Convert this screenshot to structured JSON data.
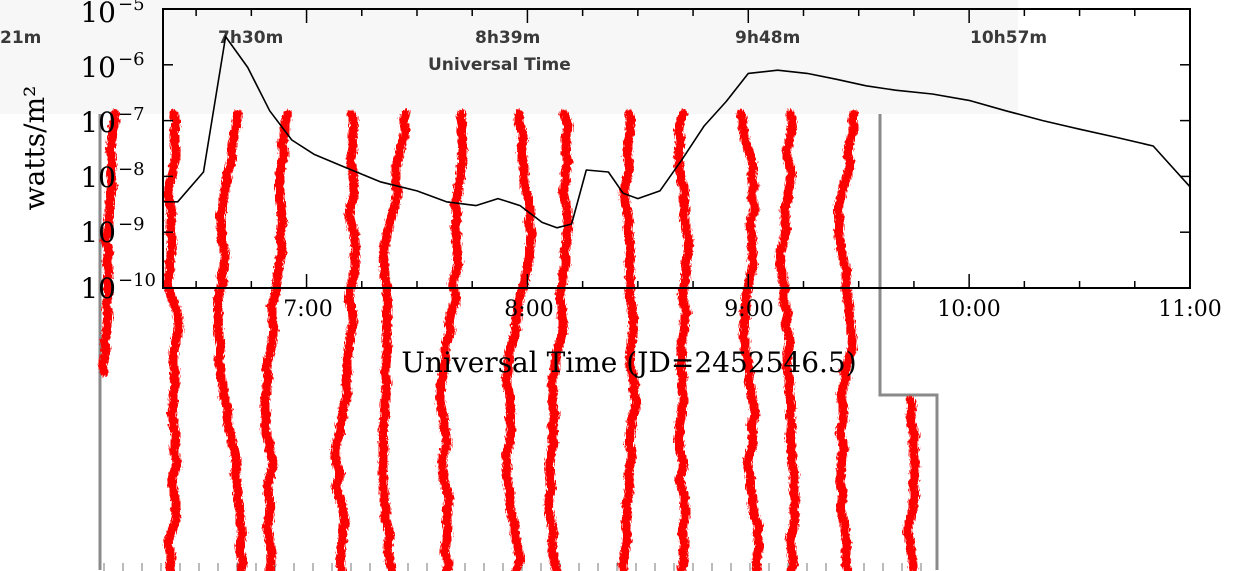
{
  "chart_data": {
    "type": "line",
    "ylabel": "watts/m²",
    "xlabel": "Universal Time (JD=2452546.5)",
    "yscale": "log",
    "ylim": [
      1e-10,
      1e-05
    ],
    "ytick_labels": [
      {
        "base": "10",
        "exp": "−5",
        "value": 1e-05
      },
      {
        "base": "10",
        "exp": "−6",
        "value": 1e-06
      },
      {
        "base": "10",
        "exp": "−7",
        "value": 1e-07
      },
      {
        "base": "10",
        "exp": "−8",
        "value": 1e-08
      },
      {
        "base": "10",
        "exp": "−9",
        "value": 1e-09
      },
      {
        "base": "10",
        "exp": "−10",
        "value": 1e-10
      }
    ],
    "xlim": [
      "06:21",
      "11:00"
    ],
    "xticks": [
      {
        "label": "7:00",
        "value": "07:00"
      },
      {
        "label": "8:00",
        "value": "08:00"
      },
      {
        "label": "9:00",
        "value": "09:00"
      },
      {
        "label": "10:00",
        "value": "10:00"
      },
      {
        "label": "11:00",
        "value": "11:00"
      }
    ],
    "series": [
      {
        "color": "#000000",
        "x": [
          "06:21",
          "06:25",
          "06:32",
          "06:38",
          "06:44",
          "06:50",
          "06:56",
          "07:02",
          "07:10",
          "07:20",
          "07:30",
          "07:38",
          "07:46",
          "07:52",
          "07:58",
          "08:04",
          "08:08",
          "08:12",
          "08:16",
          "08:22",
          "08:26",
          "08:30",
          "08:36",
          "08:42",
          "08:48",
          "08:54",
          "09:00",
          "09:08",
          "09:16",
          "09:24",
          "09:32",
          "09:40",
          "09:50",
          "10:00",
          "10:10",
          "10:20",
          "10:30",
          "10:40",
          "10:50",
          "11:00"
        ],
        "y": [
          3.5e-09,
          3.5e-09,
          1.2e-08,
          3.2e-06,
          9e-07,
          1.5e-07,
          4.5e-08,
          2.5e-08,
          1.5e-08,
          8e-09,
          5.5e-09,
          3.5e-09,
          3e-09,
          4e-09,
          3e-09,
          1.5e-09,
          1.2e-09,
          1.4e-09,
          1.3e-08,
          1.2e-08,
          5e-09,
          4e-09,
          5.5e-09,
          2e-08,
          8e-08,
          2.2e-07,
          7e-07,
          8e-07,
          7e-07,
          5.5e-07,
          4.2e-07,
          3.5e-07,
          3e-07,
          2.3e-07,
          1.5e-07,
          1e-07,
          7e-08,
          5e-08,
          3.5e-08,
          6.5e-09
        ]
      }
    ],
    "background_image": {
      "time_labels": [
        "21m",
        "7h30m",
        "8h39m",
        "9h48m",
        "10h57m"
      ],
      "time_title": "Universal Time",
      "trace_color": "#ff0000"
    }
  }
}
